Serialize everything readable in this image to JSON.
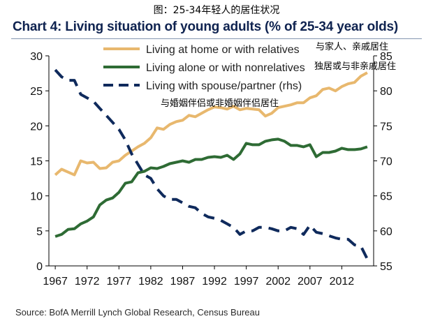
{
  "caption": "图：25-34年轻人的居住状况",
  "source": "Source: BofA Merrill Lynch Global Research, Census Bureau",
  "chart_data": {
    "type": "line",
    "title": "Chart 4: Living situation of young adults (% of 25-34 year olds)",
    "x": [
      1967,
      1968,
      1969,
      1970,
      1971,
      1972,
      1973,
      1974,
      1975,
      1976,
      1977,
      1978,
      1979,
      1980,
      1981,
      1982,
      1983,
      1984,
      1985,
      1986,
      1987,
      1988,
      1989,
      1990,
      1991,
      1992,
      1993,
      1994,
      1995,
      1996,
      1997,
      1998,
      1999,
      2000,
      2001,
      2002,
      2003,
      2004,
      2005,
      2006,
      2007,
      2008,
      2009,
      2010,
      2011,
      2012,
      2013,
      2014,
      2015,
      2016
    ],
    "xticks": [
      "1967",
      "1972",
      "1977",
      "1982",
      "1987",
      "1992",
      "1997",
      "2002",
      "2007",
      "2012"
    ],
    "xlim": [
      1966,
      2017
    ],
    "ylim_left": [
      0,
      30
    ],
    "yticks_left": [
      "0",
      "5",
      "10",
      "15",
      "20",
      "25",
      "30"
    ],
    "ylim_right": [
      55,
      85
    ],
    "yticks_right": [
      "55",
      "60",
      "65",
      "70",
      "75",
      "80",
      "85"
    ],
    "grid": false,
    "series": [
      {
        "name": "Living at home or with relatives",
        "axis": "left",
        "color": "#e8b86e",
        "dash": "solid",
        "annotation": "与家人、亲戚居住",
        "values": [
          13.0,
          13.8,
          13.4,
          13.0,
          15.0,
          14.7,
          14.8,
          13.9,
          14.0,
          14.8,
          15.0,
          15.8,
          16.4,
          17.0,
          17.5,
          18.3,
          19.7,
          19.5,
          20.2,
          20.6,
          20.8,
          21.5,
          21.3,
          21.8,
          22.3,
          22.7,
          22.6,
          22.4,
          22.8,
          22.3,
          22.5,
          22.4,
          22.3,
          21.4,
          21.8,
          22.6,
          22.8,
          23.0,
          23.3,
          23.3,
          24.0,
          24.3,
          25.2,
          25.4,
          25.0,
          25.6,
          26.0,
          26.2,
          27.1,
          27.6
        ]
      },
      {
        "name": "Living alone or with nonrelatives",
        "axis": "left",
        "color": "#2e6b34",
        "dash": "solid",
        "annotation": "独居或与非亲戚居住",
        "values": [
          4.2,
          4.5,
          5.2,
          5.3,
          6.0,
          6.4,
          7.0,
          8.7,
          9.4,
          9.7,
          10.5,
          11.8,
          12.0,
          13.3,
          13.5,
          14.0,
          13.9,
          14.2,
          14.6,
          14.8,
          15.0,
          14.8,
          15.2,
          15.2,
          15.5,
          15.6,
          15.5,
          15.8,
          15.2,
          16.0,
          17.5,
          17.3,
          17.3,
          17.8,
          18.0,
          18.1,
          17.8,
          17.2,
          17.2,
          17.0,
          17.3,
          15.6,
          16.2,
          16.2,
          16.4,
          16.8,
          16.6,
          16.6,
          16.7,
          17.0
        ]
      },
      {
        "name": "Living with spouse/partner (rhs)",
        "axis": "right",
        "color": "#0f2a5c",
        "dash": "dashed",
        "annotation": "与婚姻伴侣或非婚姻伴侣居住",
        "values": [
          83.0,
          82.0,
          81.5,
          81.5,
          79.5,
          79.0,
          78.5,
          77.5,
          76.5,
          75.5,
          74.5,
          73.0,
          71.0,
          69.5,
          68.0,
          67.5,
          66.0,
          65.0,
          64.5,
          64.5,
          64.0,
          63.5,
          63.3,
          62.5,
          62.0,
          61.8,
          61.5,
          61.0,
          60.5,
          59.5,
          60.0,
          60.0,
          60.5,
          60.5,
          60.3,
          60.0,
          60.0,
          60.5,
          60.3,
          59.5,
          60.8,
          59.8,
          59.6,
          59.3,
          59.0,
          58.8,
          58.8,
          58.0,
          57.8,
          56.0
        ]
      }
    ]
  }
}
